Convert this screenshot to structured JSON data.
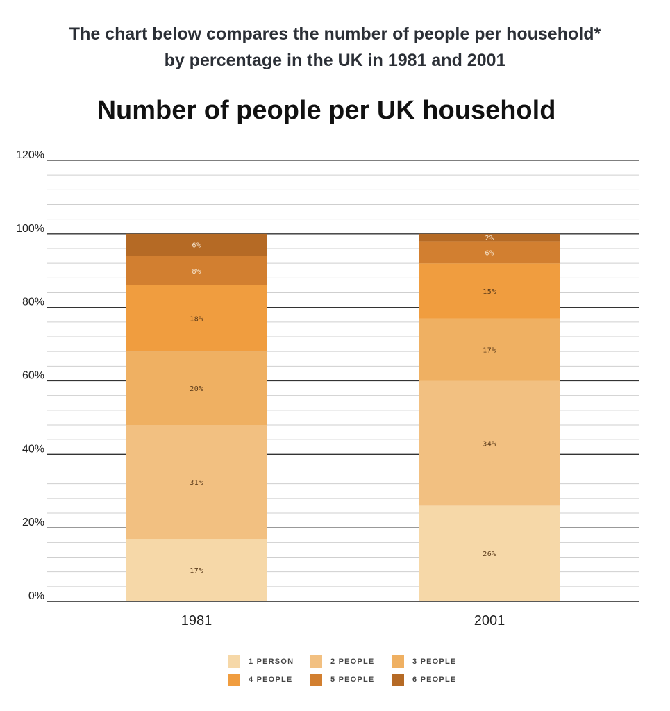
{
  "header": {
    "line1": "The chart below compares the number of people per household*",
    "line2": "by percentage in the UK in 1981 and 2001"
  },
  "colors": [
    "#f6d8a8",
    "#f2c081",
    "#efb062",
    "#f09d3f",
    "#d27f30",
    "#b56a25"
  ],
  "chart_data": {
    "type": "bar",
    "stacked": true,
    "title": "Number of people per UK household",
    "categories": [
      "1981",
      "2001"
    ],
    "series": [
      {
        "name": "1 PERSON",
        "values": [
          17,
          26
        ]
      },
      {
        "name": "2 PEOPLE",
        "values": [
          31,
          34
        ]
      },
      {
        "name": "3 PEOPLE",
        "values": [
          20,
          17
        ]
      },
      {
        "name": "4 PEOPLE",
        "values": [
          18,
          15
        ]
      },
      {
        "name": "5 PEOPLE",
        "values": [
          8,
          6
        ]
      },
      {
        "name": "6 PEOPLE",
        "values": [
          6,
          2
        ]
      }
    ],
    "data_labels": [
      [
        "17%",
        "31%",
        "20%",
        "18%",
        "8%",
        "6%"
      ],
      [
        "26%",
        "34%",
        "17%",
        "15%",
        "6%",
        "2%"
      ]
    ],
    "ylim": [
      0,
      120
    ],
    "ytick_labels": [
      "0%",
      "20%",
      "40%",
      "60%",
      "80%",
      "100%",
      "120%"
    ],
    "grid": true,
    "legend_position": "bottom"
  }
}
